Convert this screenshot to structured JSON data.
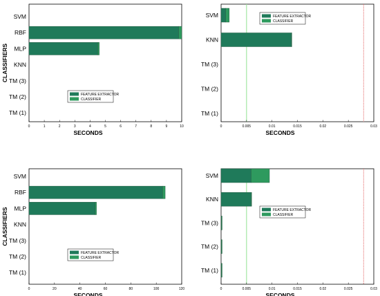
{
  "colors": {
    "feature_extractor": "#1f7a5a",
    "classifier": "#2e9a5e",
    "threshold_green": "#9be49b",
    "threshold_red": "#e05b5b"
  },
  "chart_data": [
    {
      "type": "bar",
      "orientation": "horizontal",
      "stacked": true,
      "categories": [
        "SVM",
        "RBF",
        "MLP",
        "KNN",
        "TM (3)",
        "TM (2)",
        "TM (1)"
      ],
      "series": [
        {
          "name": "FEATURE EXTRACTOR",
          "values": [
            0,
            9.8,
            4.5,
            0,
            0,
            0,
            0
          ]
        },
        {
          "name": "CLASSIFIER",
          "values": [
            0,
            0.2,
            0.1,
            0,
            0,
            0,
            0
          ]
        }
      ],
      "xlabel": "SECONDS",
      "ylabel": "CLASSIFIERS",
      "xlim": [
        0,
        10
      ],
      "xticks": [
        "0",
        "1",
        "2",
        "3",
        "4",
        "5",
        "6",
        "7",
        "8",
        "9",
        "10"
      ],
      "legend_position": "bottom-right",
      "vlines": []
    },
    {
      "type": "bar",
      "orientation": "horizontal",
      "stacked": true,
      "categories": [
        "SVM",
        "KNN",
        "TM (3)",
        "TM (2)",
        "TM (1)"
      ],
      "series": [
        {
          "name": "FEATURE EXTRACTOR",
          "values": [
            0.0009,
            0.0138,
            0,
            0,
            0
          ]
        },
        {
          "name": "CLASSIFIER",
          "values": [
            0.0007,
            0.0001,
            0,
            0,
            0
          ]
        }
      ],
      "xlabel": "SECONDS",
      "ylabel": "",
      "xlim": [
        0,
        0.03
      ],
      "xticks": [
        "0",
        "0.005",
        "0.01",
        "0.015",
        "0.02",
        "0.025",
        "0.03"
      ],
      "legend_position": "top-right",
      "vlines": [
        {
          "x": 0.005,
          "color": "threshold_green",
          "style": "solid"
        },
        {
          "x": 0.028,
          "color": "threshold_red",
          "style": "dotted"
        }
      ]
    },
    {
      "type": "bar",
      "orientation": "horizontal",
      "stacked": true,
      "categories": [
        "SVM",
        "RBF",
        "MLP",
        "KNN",
        "TM (3)",
        "TM (2)",
        "TM (1)"
      ],
      "series": [
        {
          "name": "FEATURE EXTRACTOR",
          "values": [
            0,
            105,
            52,
            0,
            0,
            0,
            0
          ]
        },
        {
          "name": "CLASSIFIER",
          "values": [
            0,
            2,
            1,
            0,
            0,
            0,
            0
          ]
        }
      ],
      "xlabel": "SECONDS",
      "ylabel": "CLASSIFIERS",
      "xlim": [
        0,
        120
      ],
      "xticks": [
        "0",
        "20",
        "40",
        "60",
        "80",
        "100",
        "120"
      ],
      "legend_position": "bottom-right",
      "vlines": []
    },
    {
      "type": "bar",
      "orientation": "horizontal",
      "stacked": true,
      "categories": [
        "SVM",
        "KNN",
        "TM (3)",
        "TM (2)",
        "TM (1)"
      ],
      "series": [
        {
          "name": "FEATURE EXTRACTOR",
          "values": [
            0.0059,
            0.0059,
            0.0001,
            0.0001,
            0.0001
          ],
          "colors_by_index": {
            "2": "classifier",
            "3": "classifier",
            "4": "classifier"
          }
        },
        {
          "name": "CLASSIFIER",
          "values": [
            0.0036,
            0.0001,
            0.0001,
            0.0001,
            0.0001
          ]
        }
      ],
      "xlabel": "SECONDS",
      "ylabel": "",
      "xlim": [
        0,
        0.03
      ],
      "xticks": [
        "0",
        "0.005",
        "0.01",
        "0.015",
        "0.02",
        "0.025",
        "0.03"
      ],
      "legend_position": "right",
      "vlines": [
        {
          "x": 0.005,
          "color": "threshold_green",
          "style": "solid"
        },
        {
          "x": 0.028,
          "color": "threshold_red",
          "style": "dotted"
        }
      ]
    }
  ]
}
